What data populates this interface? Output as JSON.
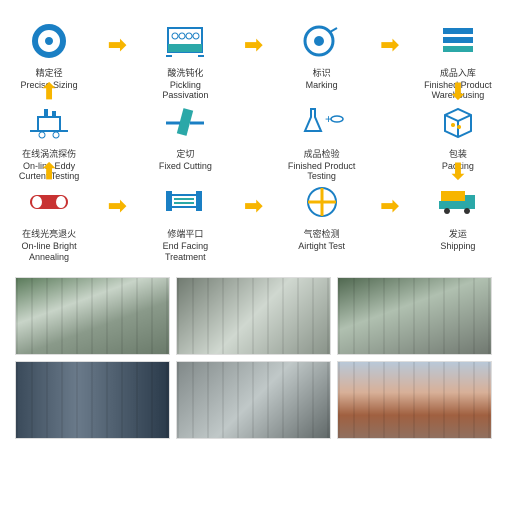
{
  "colors": {
    "arrow": "#f7b500",
    "iconStroke": "#1a7fc4",
    "iconTeal": "#2ba8a8",
    "red": "#c83232",
    "white": "#ffffff",
    "text": "#333333"
  },
  "fontsize": {
    "label": 9
  },
  "grid": {
    "cols": 7,
    "rows": 3
  },
  "steps": [
    {
      "id": "precise-sizing",
      "cn": "精定径",
      "en": "Precise Sizing",
      "row": 0,
      "col": 0,
      "icon": "ring"
    },
    {
      "id": "pickling",
      "cn": "酸洗钝化",
      "en": "Pickling Passivation",
      "row": 0,
      "col": 2,
      "icon": "tank"
    },
    {
      "id": "marking",
      "cn": "标识",
      "en": "Marking",
      "row": 0,
      "col": 4,
      "icon": "disc"
    },
    {
      "id": "warehousing",
      "cn": "成品入库",
      "en": "Finished Product\nWarehousing",
      "row": 0,
      "col": 6,
      "icon": "shelf"
    },
    {
      "id": "eddy",
      "cn": "在线涡流探伤",
      "en": "On-line Eddy\nCurtent Testing",
      "row": 1,
      "col": 0,
      "icon": "machine"
    },
    {
      "id": "cutting",
      "cn": "定切",
      "en": "Fixed Cutting",
      "row": 1,
      "col": 2,
      "icon": "cut"
    },
    {
      "id": "testing",
      "cn": "成品检验",
      "en": "Finished Product Testing",
      "row": 1,
      "col": 4,
      "icon": "flask"
    },
    {
      "id": "packing",
      "cn": "包装",
      "en": "Packing",
      "row": 1,
      "col": 6,
      "icon": "box"
    },
    {
      "id": "annealing",
      "cn": "在线光亮退火",
      "en": "On-line Bright\nAnnealing",
      "row": 2,
      "col": 0,
      "icon": "tube"
    },
    {
      "id": "facing",
      "cn": "修端平口",
      "en": "End Facing Treatment",
      "row": 2,
      "col": 2,
      "icon": "lathe"
    },
    {
      "id": "airtight",
      "cn": "气密检测",
      "en": "Airtight Test",
      "row": 2,
      "col": 4,
      "icon": "cross"
    },
    {
      "id": "shipping",
      "cn": "发运",
      "en": "Shipping",
      "row": 2,
      "col": 6,
      "icon": "truck"
    }
  ],
  "arrows": [
    {
      "row": 0,
      "col": 1,
      "dir": "right"
    },
    {
      "row": 0,
      "col": 3,
      "dir": "right"
    },
    {
      "row": 0,
      "col": 5,
      "dir": "right"
    },
    {
      "row": 2,
      "col": 1,
      "dir": "right"
    },
    {
      "row": 2,
      "col": 3,
      "dir": "right"
    },
    {
      "row": 2,
      "col": 5,
      "dir": "right"
    }
  ],
  "vertArrows": {
    "c0": {
      "dir": "up"
    },
    "c6": {
      "dir": "down"
    }
  },
  "photos": [
    {
      "id": "photo-1",
      "variant": "photo"
    },
    {
      "id": "photo-2",
      "variant": "photo2"
    },
    {
      "id": "photo-3",
      "variant": "photo3"
    },
    {
      "id": "photo-4",
      "variant": "photo4"
    },
    {
      "id": "photo-5",
      "variant": "photo5"
    },
    {
      "id": "photo-6",
      "variant": "photo6"
    }
  ]
}
